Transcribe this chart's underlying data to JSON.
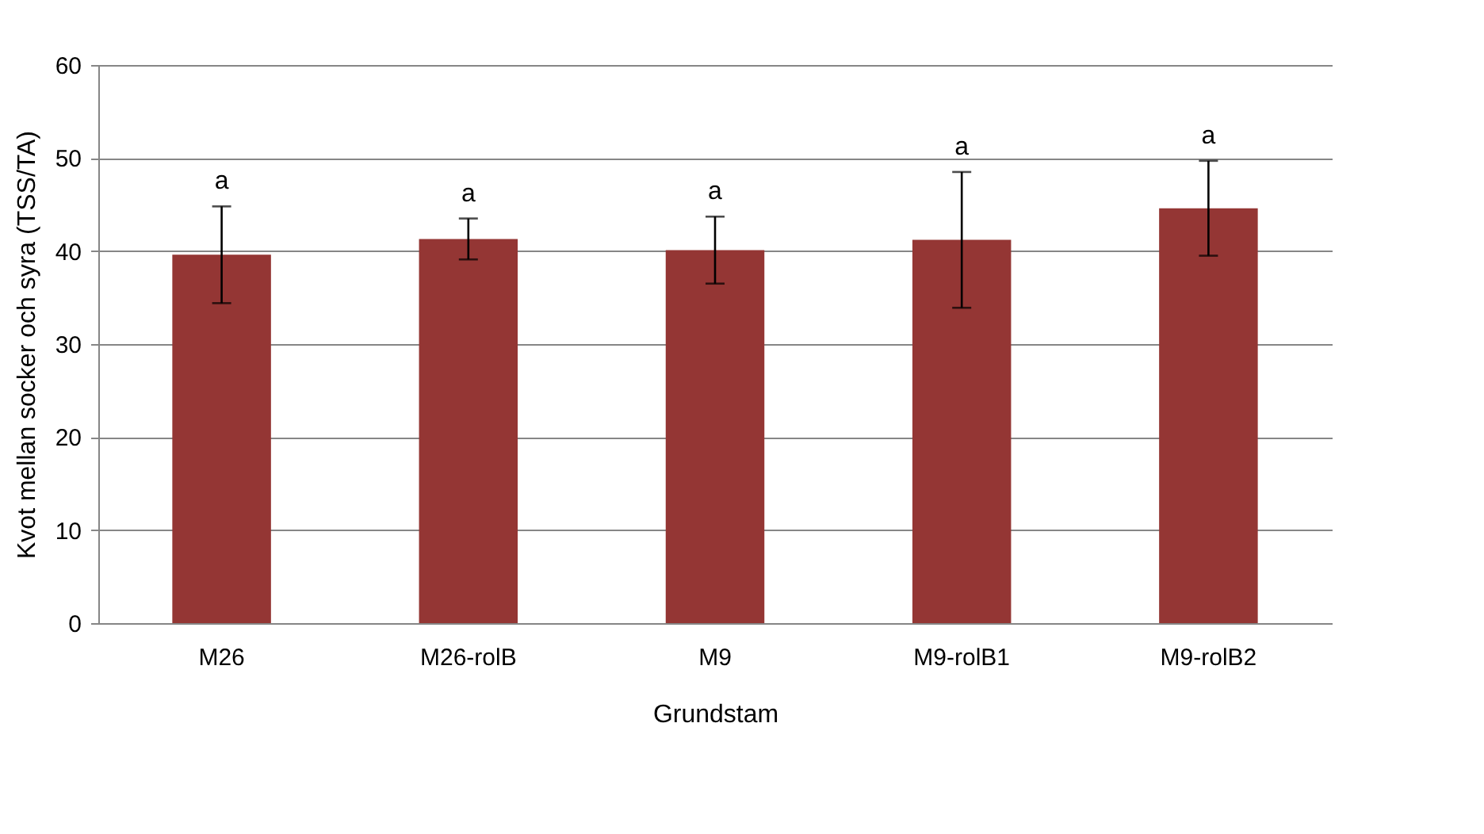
{
  "chart_data": {
    "type": "bar",
    "xlabel": "Grundstam",
    "ylabel": "Kvot mellan socker och syra (TSS/TA)",
    "categories": [
      "M26",
      "M26-rolB",
      "M9",
      "M9-rolB1",
      "M9-rolB2"
    ],
    "values": [
      39.6,
      41.3,
      40.1,
      41.2,
      44.6
    ],
    "errors": [
      5.2,
      2.2,
      3.6,
      7.3,
      5.1
    ],
    "color": "#943634",
    "ylim": [
      0,
      60
    ],
    "yticks": [
      0,
      10,
      20,
      30,
      40,
      50,
      60
    ],
    "grid": "y",
    "annotations": [
      {
        "text": "a",
        "x": "M26",
        "y": 44.8
      },
      {
        "text": "a",
        "x": "M26-rolB",
        "y": 43.5
      },
      {
        "text": "a",
        "x": "M9",
        "y": 43.7
      },
      {
        "text": "a",
        "x": "M9-rolB1",
        "y": 48.5
      },
      {
        "text": "a",
        "x": "M9-rolB2",
        "y": 49.7
      }
    ]
  }
}
